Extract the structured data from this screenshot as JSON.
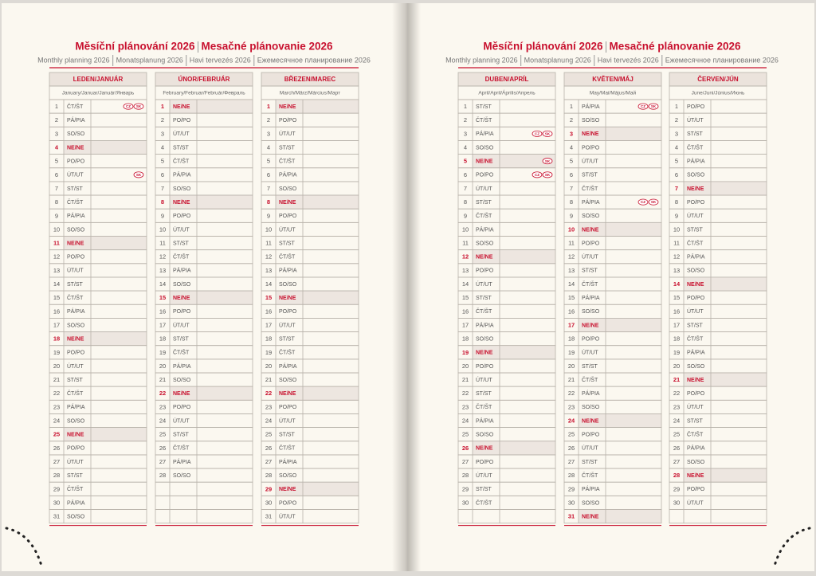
{
  "pages": [
    {
      "title": [
        "Měsíční plánování 2026",
        "Mesačné plánovanie 2026"
      ],
      "subtitle": [
        "Monthly planning 2026",
        "Monatsplanung 2026",
        "Havi tervezés 2026",
        "Ежемесячное планирование 2026"
      ],
      "months": [
        {
          "name": "LEDEN/JANUÁR",
          "sub": "January/Januar/Január/Январь",
          "days": [
            [
              1,
              "ČT/ŠT",
              [
                "CZ",
                "SK"
              ]
            ],
            [
              2,
              "PÁ/PIA"
            ],
            [
              3,
              "SO/SO"
            ],
            [
              4,
              "NE/NE"
            ],
            [
              5,
              "PO/PO"
            ],
            [
              6,
              "ÚT/UT",
              [
                "SK"
              ]
            ],
            [
              7,
              "ST/ST"
            ],
            [
              8,
              "ČT/ŠT"
            ],
            [
              9,
              "PÁ/PIA"
            ],
            [
              10,
              "SO/SO"
            ],
            [
              11,
              "NE/NE"
            ],
            [
              12,
              "PO/PO"
            ],
            [
              13,
              "ÚT/UT"
            ],
            [
              14,
              "ST/ST"
            ],
            [
              15,
              "ČT/ŠT"
            ],
            [
              16,
              "PÁ/PIA"
            ],
            [
              17,
              "SO/SO"
            ],
            [
              18,
              "NE/NE"
            ],
            [
              19,
              "PO/PO"
            ],
            [
              20,
              "ÚT/UT"
            ],
            [
              21,
              "ST/ST"
            ],
            [
              22,
              "ČT/ŠT"
            ],
            [
              23,
              "PÁ/PIA"
            ],
            [
              24,
              "SO/SO"
            ],
            [
              25,
              "NE/NE"
            ],
            [
              26,
              "PO/PO"
            ],
            [
              27,
              "ÚT/UT"
            ],
            [
              28,
              "ST/ST"
            ],
            [
              29,
              "ČT/ŠT"
            ],
            [
              30,
              "PÁ/PIA"
            ],
            [
              31,
              "SO/SO"
            ]
          ]
        },
        {
          "name": "ÚNOR/FEBRUÁR",
          "sub": "February/Februar/Február/Февраль",
          "days": [
            [
              1,
              "NE/NE"
            ],
            [
              2,
              "PO/PO"
            ],
            [
              3,
              "ÚT/UT"
            ],
            [
              4,
              "ST/ST"
            ],
            [
              5,
              "ČT/ŠT"
            ],
            [
              6,
              "PÁ/PIA"
            ],
            [
              7,
              "SO/SO"
            ],
            [
              8,
              "NE/NE"
            ],
            [
              9,
              "PO/PO"
            ],
            [
              10,
              "ÚT/UT"
            ],
            [
              11,
              "ST/ST"
            ],
            [
              12,
              "ČT/ŠT"
            ],
            [
              13,
              "PÁ/PIA"
            ],
            [
              14,
              "SO/SO"
            ],
            [
              15,
              "NE/NE"
            ],
            [
              16,
              "PO/PO"
            ],
            [
              17,
              "ÚT/UT"
            ],
            [
              18,
              "ST/ST"
            ],
            [
              19,
              "ČT/ŠT"
            ],
            [
              20,
              "PÁ/PIA"
            ],
            [
              21,
              "SO/SO"
            ],
            [
              22,
              "NE/NE"
            ],
            [
              23,
              "PO/PO"
            ],
            [
              24,
              "ÚT/UT"
            ],
            [
              25,
              "ST/ST"
            ],
            [
              26,
              "ČT/ŠT"
            ],
            [
              27,
              "PÁ/PIA"
            ],
            [
              28,
              "SO/SO"
            ]
          ]
        },
        {
          "name": "BŘEZEN/MAREC",
          "sub": "March/März/Március/Март",
          "days": [
            [
              1,
              "NE/NE"
            ],
            [
              2,
              "PO/PO"
            ],
            [
              3,
              "ÚT/UT"
            ],
            [
              4,
              "ST/ST"
            ],
            [
              5,
              "ČT/ŠT"
            ],
            [
              6,
              "PÁ/PIA"
            ],
            [
              7,
              "SO/SO"
            ],
            [
              8,
              "NE/NE"
            ],
            [
              9,
              "PO/PO"
            ],
            [
              10,
              "ÚT/UT"
            ],
            [
              11,
              "ST/ST"
            ],
            [
              12,
              "ČT/ŠT"
            ],
            [
              13,
              "PÁ/PIA"
            ],
            [
              14,
              "SO/SO"
            ],
            [
              15,
              "NE/NE"
            ],
            [
              16,
              "PO/PO"
            ],
            [
              17,
              "ÚT/UT"
            ],
            [
              18,
              "ST/ST"
            ],
            [
              19,
              "ČT/ŠT"
            ],
            [
              20,
              "PÁ/PIA"
            ],
            [
              21,
              "SO/SO"
            ],
            [
              22,
              "NE/NE"
            ],
            [
              23,
              "PO/PO"
            ],
            [
              24,
              "ÚT/UT"
            ],
            [
              25,
              "ST/ST"
            ],
            [
              26,
              "ČT/ŠT"
            ],
            [
              27,
              "PÁ/PIA"
            ],
            [
              28,
              "SO/SO"
            ],
            [
              29,
              "NE/NE"
            ],
            [
              30,
              "PO/PO"
            ],
            [
              31,
              "ÚT/UT"
            ]
          ]
        }
      ]
    },
    {
      "title": [
        "Měsíční plánování 2026",
        "Mesačné plánovanie 2026"
      ],
      "subtitle": [
        "Monthly planning 2026",
        "Monatsplanung 2026",
        "Havi tervezés 2026",
        "Ежемесячное планирование 2026"
      ],
      "months": [
        {
          "name": "DUBEN/APRÍL",
          "sub": "April/April/Április/Апрель",
          "days": [
            [
              1,
              "ST/ST"
            ],
            [
              2,
              "ČT/ŠT"
            ],
            [
              3,
              "PÁ/PIA",
              [
                "CZ",
                "SK"
              ]
            ],
            [
              4,
              "SO/SO"
            ],
            [
              5,
              "NE/NE",
              [
                "SK"
              ]
            ],
            [
              6,
              "PO/PO",
              [
                "CZ",
                "SK"
              ]
            ],
            [
              7,
              "ÚT/UT"
            ],
            [
              8,
              "ST/ST"
            ],
            [
              9,
              "ČT/ŠT"
            ],
            [
              10,
              "PÁ/PIA"
            ],
            [
              11,
              "SO/SO"
            ],
            [
              12,
              "NE/NE"
            ],
            [
              13,
              "PO/PO"
            ],
            [
              14,
              "ÚT/UT"
            ],
            [
              15,
              "ST/ST"
            ],
            [
              16,
              "ČT/ŠT"
            ],
            [
              17,
              "PÁ/PIA"
            ],
            [
              18,
              "SO/SO"
            ],
            [
              19,
              "NE/NE"
            ],
            [
              20,
              "PO/PO"
            ],
            [
              21,
              "ÚT/UT"
            ],
            [
              22,
              "ST/ST"
            ],
            [
              23,
              "ČT/ŠT"
            ],
            [
              24,
              "PÁ/PIA"
            ],
            [
              25,
              "SO/SO"
            ],
            [
              26,
              "NE/NE"
            ],
            [
              27,
              "PO/PO"
            ],
            [
              28,
              "ÚT/UT"
            ],
            [
              29,
              "ST/ST"
            ],
            [
              30,
              "ČT/ŠT"
            ]
          ]
        },
        {
          "name": "KVĚTEN/MÁJ",
          "sub": "May/Mai/Május/Май",
          "days": [
            [
              1,
              "PÁ/PIA",
              [
                "CZ",
                "SK"
              ]
            ],
            [
              2,
              "SO/SO"
            ],
            [
              3,
              "NE/NE"
            ],
            [
              4,
              "PO/PO"
            ],
            [
              5,
              "ÚT/UT"
            ],
            [
              6,
              "ST/ST"
            ],
            [
              7,
              "ČT/ŠT"
            ],
            [
              8,
              "PÁ/PIA",
              [
                "CZ",
                "SK"
              ]
            ],
            [
              9,
              "SO/SO"
            ],
            [
              10,
              "NE/NE"
            ],
            [
              11,
              "PO/PO"
            ],
            [
              12,
              "ÚT/UT"
            ],
            [
              13,
              "ST/ST"
            ],
            [
              14,
              "ČT/ŠT"
            ],
            [
              15,
              "PÁ/PIA"
            ],
            [
              16,
              "SO/SO"
            ],
            [
              17,
              "NE/NE"
            ],
            [
              18,
              "PO/PO"
            ],
            [
              19,
              "ÚT/UT"
            ],
            [
              20,
              "ST/ST"
            ],
            [
              21,
              "ČT/ŠT"
            ],
            [
              22,
              "PÁ/PIA"
            ],
            [
              23,
              "SO/SO"
            ],
            [
              24,
              "NE/NE"
            ],
            [
              25,
              "PO/PO"
            ],
            [
              26,
              "ÚT/UT"
            ],
            [
              27,
              "ST/ST"
            ],
            [
              28,
              "ČT/ŠT"
            ],
            [
              29,
              "PÁ/PIA"
            ],
            [
              30,
              "SO/SO"
            ],
            [
              31,
              "NE/NE"
            ]
          ]
        },
        {
          "name": "ČERVEN/JÚN",
          "sub": "June/Juni/Június/Июнь",
          "days": [
            [
              1,
              "PO/PO"
            ],
            [
              2,
              "ÚT/UT"
            ],
            [
              3,
              "ST/ST"
            ],
            [
              4,
              "ČT/ŠT"
            ],
            [
              5,
              "PÁ/PIA"
            ],
            [
              6,
              "SO/SO"
            ],
            [
              7,
              "NE/NE"
            ],
            [
              8,
              "PO/PO"
            ],
            [
              9,
              "ÚT/UT"
            ],
            [
              10,
              "ST/ST"
            ],
            [
              11,
              "ČT/ŠT"
            ],
            [
              12,
              "PÁ/PIA"
            ],
            [
              13,
              "SO/SO"
            ],
            [
              14,
              "NE/NE"
            ],
            [
              15,
              "PO/PO"
            ],
            [
              16,
              "ÚT/UT"
            ],
            [
              17,
              "ST/ST"
            ],
            [
              18,
              "ČT/ŠT"
            ],
            [
              19,
              "PÁ/PIA"
            ],
            [
              20,
              "SO/SO"
            ],
            [
              21,
              "NE/NE"
            ],
            [
              22,
              "PO/PO"
            ],
            [
              23,
              "ÚT/UT"
            ],
            [
              24,
              "ST/ST"
            ],
            [
              25,
              "ČT/ŠT"
            ],
            [
              26,
              "PÁ/PIA"
            ],
            [
              27,
              "SO/SO"
            ],
            [
              28,
              "NE/NE"
            ],
            [
              29,
              "PO/PO"
            ],
            [
              30,
              "ÚT/UT"
            ]
          ]
        }
      ]
    }
  ]
}
